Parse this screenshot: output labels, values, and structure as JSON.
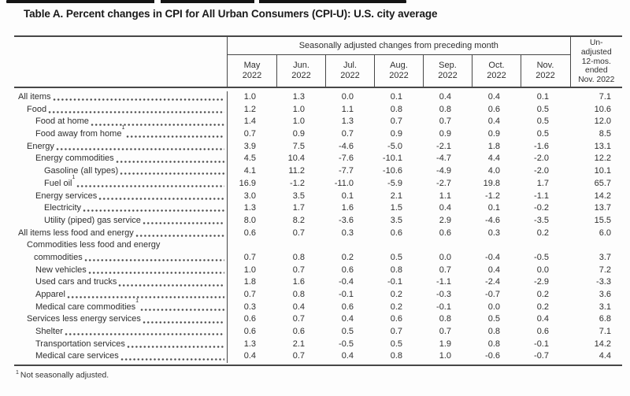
{
  "colors": {
    "text": "#2f2f2f",
    "title": "#1a1a1a",
    "border": "#474747",
    "page_background": "#fdfdfd",
    "artifact": "#151515"
  },
  "chart_data": {
    "type": "table",
    "title": "Table A. Percent changes in CPI for All Urban Consumers (CPI-U): U.S. city average",
    "column_group_header": "Seasonally adjusted changes from preceding month",
    "columns": [
      {
        "month": "May",
        "year": "2022"
      },
      {
        "month": "Jun.",
        "year": "2022"
      },
      {
        "month": "Jul.",
        "year": "2022"
      },
      {
        "month": "Aug.",
        "year": "2022"
      },
      {
        "month": "Sep.",
        "year": "2022"
      },
      {
        "month": "Oct.",
        "year": "2022"
      },
      {
        "month": "Nov.",
        "year": "2022"
      }
    ],
    "unadjusted_header_lines": [
      "Un-",
      "adjusted",
      "12-mos.",
      "ended",
      "Nov. 2022"
    ],
    "footnote_marker": "1",
    "footnote_text": "Not seasonally adjusted.",
    "rows": [
      {
        "label": "All items",
        "indent": 0,
        "footnote": false,
        "values": [
          "1.0",
          "1.3",
          "0.0",
          "0.1",
          "0.4",
          "0.4",
          "0.1",
          "7.1"
        ]
      },
      {
        "label": "Food",
        "indent": 1,
        "footnote": false,
        "values": [
          "1.2",
          "1.0",
          "1.1",
          "0.8",
          "0.8",
          "0.6",
          "0.5",
          "10.6"
        ]
      },
      {
        "label": "Food at home",
        "indent": 2,
        "footnote": false,
        "values": [
          "1.4",
          "1.0",
          "1.3",
          "0.7",
          "0.7",
          "0.4",
          "0.5",
          "12.0"
        ]
      },
      {
        "label": "Food away from home",
        "indent": 2,
        "footnote": true,
        "values": [
          "0.7",
          "0.9",
          "0.7",
          "0.9",
          "0.9",
          "0.9",
          "0.5",
          "8.5"
        ]
      },
      {
        "label": "Energy",
        "indent": 1,
        "footnote": false,
        "values": [
          "3.9",
          "7.5",
          "-4.6",
          "-5.0",
          "-2.1",
          "1.8",
          "-1.6",
          "13.1"
        ]
      },
      {
        "label": "Energy commodities",
        "indent": 2,
        "footnote": false,
        "values": [
          "4.5",
          "10.4",
          "-7.6",
          "-10.1",
          "-4.7",
          "4.4",
          "-2.0",
          "12.2"
        ]
      },
      {
        "label": "Gasoline (all types)",
        "indent": 3,
        "footnote": false,
        "values": [
          "4.1",
          "11.2",
          "-7.7",
          "-10.6",
          "-4.9",
          "4.0",
          "-2.0",
          "10.1"
        ]
      },
      {
        "label": "Fuel oil",
        "indent": 3,
        "footnote": true,
        "values": [
          "16.9",
          "-1.2",
          "-11.0",
          "-5.9",
          "-2.7",
          "19.8",
          "1.7",
          "65.7"
        ]
      },
      {
        "label": "Energy services",
        "indent": 2,
        "footnote": false,
        "values": [
          "3.0",
          "3.5",
          "0.1",
          "2.1",
          "1.1",
          "-1.2",
          "-1.1",
          "14.2"
        ]
      },
      {
        "label": "Electricity",
        "indent": 3,
        "footnote": false,
        "values": [
          "1.3",
          "1.7",
          "1.6",
          "1.5",
          "0.4",
          "0.1",
          "-0.2",
          "13.7"
        ]
      },
      {
        "label": "Utility (piped) gas service",
        "indent": 3,
        "footnote": false,
        "values": [
          "8.0",
          "8.2",
          "-3.6",
          "3.5",
          "2.9",
          "-4.6",
          "-3.5",
          "15.5"
        ]
      },
      {
        "label": "All items less food and energy",
        "indent": 0,
        "footnote": false,
        "values": [
          "0.6",
          "0.7",
          "0.3",
          "0.6",
          "0.6",
          "0.3",
          "0.2",
          "6.0"
        ]
      },
      {
        "label": "Commodities less food and energy",
        "label_line2": "commodities",
        "indent": 1,
        "footnote": false,
        "values": [
          "0.7",
          "0.8",
          "0.2",
          "0.5",
          "0.0",
          "-0.4",
          "-0.5",
          "3.7"
        ]
      },
      {
        "label": "New vehicles",
        "indent": 2,
        "footnote": false,
        "values": [
          "1.0",
          "0.7",
          "0.6",
          "0.8",
          "0.7",
          "0.4",
          "0.0",
          "7.2"
        ]
      },
      {
        "label": "Used cars and trucks",
        "indent": 2,
        "footnote": false,
        "values": [
          "1.8",
          "1.6",
          "-0.4",
          "-0.1",
          "-1.1",
          "-2.4",
          "-2.9",
          "-3.3"
        ]
      },
      {
        "label": "Apparel",
        "indent": 2,
        "footnote": false,
        "values": [
          "0.7",
          "0.8",
          "-0.1",
          "0.2",
          "-0.3",
          "-0.7",
          "0.2",
          "3.6"
        ]
      },
      {
        "label": "Medical care commodities",
        "indent": 2,
        "footnote": true,
        "values": [
          "0.3",
          "0.4",
          "0.6",
          "0.2",
          "-0.1",
          "0.0",
          "0.2",
          "3.1"
        ]
      },
      {
        "label": "Services less energy services",
        "indent": 1,
        "footnote": false,
        "values": [
          "0.6",
          "0.7",
          "0.4",
          "0.6",
          "0.8",
          "0.5",
          "0.4",
          "6.8"
        ]
      },
      {
        "label": "Shelter",
        "indent": 2,
        "footnote": false,
        "values": [
          "0.6",
          "0.6",
          "0.5",
          "0.7",
          "0.7",
          "0.8",
          "0.6",
          "7.1"
        ]
      },
      {
        "label": "Transportation services",
        "indent": 2,
        "footnote": false,
        "values": [
          "1.3",
          "2.1",
          "-0.5",
          "0.5",
          "1.9",
          "0.8",
          "-0.1",
          "14.2"
        ]
      },
      {
        "label": "Medical care services",
        "indent": 2,
        "footnote": false,
        "values": [
          "0.4",
          "0.7",
          "0.4",
          "0.8",
          "1.0",
          "-0.6",
          "-0.7",
          "4.4"
        ]
      }
    ]
  }
}
